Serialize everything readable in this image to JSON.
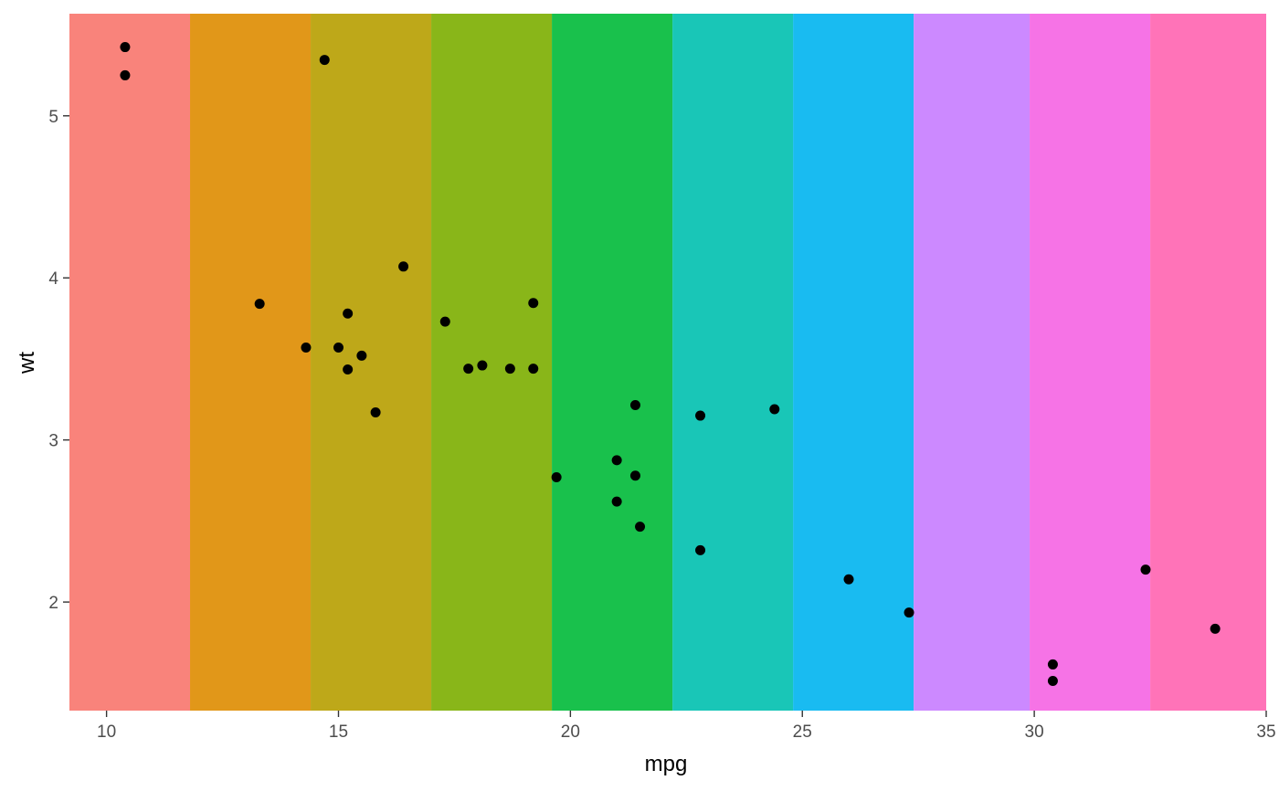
{
  "chart_data": {
    "type": "scatter",
    "xlabel": "mpg",
    "ylabel": "wt",
    "xlim": [
      9.2,
      35.0
    ],
    "ylim": [
      1.33,
      5.63
    ],
    "grid": false,
    "legend": "none",
    "x_ticks": [
      {
        "value": 10,
        "label": "10"
      },
      {
        "value": 15,
        "label": "15"
      },
      {
        "value": 20,
        "label": "20"
      },
      {
        "value": 25,
        "label": "25"
      },
      {
        "value": 30,
        "label": "30"
      },
      {
        "value": 35,
        "label": "35"
      }
    ],
    "y_ticks": [
      {
        "value": 2,
        "label": "2"
      },
      {
        "value": 3,
        "label": "3"
      },
      {
        "value": 4,
        "label": "4"
      },
      {
        "value": 5,
        "label": "5"
      }
    ],
    "background_bands": [
      {
        "x_from": 9.2,
        "x_to": 11.8,
        "color": "#F8766D"
      },
      {
        "x_from": 11.8,
        "x_to": 14.4,
        "color": "#DE8C00"
      },
      {
        "x_from": 14.4,
        "x_to": 17.0,
        "color": "#B79F00"
      },
      {
        "x_from": 17.0,
        "x_to": 19.6,
        "color": "#7CAE00"
      },
      {
        "x_from": 19.6,
        "x_to": 22.2,
        "color": "#00BA38"
      },
      {
        "x_from": 22.2,
        "x_to": 24.8,
        "color": "#00C0AF"
      },
      {
        "x_from": 24.8,
        "x_to": 27.4,
        "color": "#00B4F0"
      },
      {
        "x_from": 27.4,
        "x_to": 29.9,
        "color": "#C77CFF"
      },
      {
        "x_from": 29.9,
        "x_to": 32.5,
        "color": "#F564E3"
      },
      {
        "x_from": 32.5,
        "x_to": 35.0,
        "color": "#FF64B0"
      }
    ],
    "band_opacity": 0.9,
    "points": [
      {
        "x": 21.0,
        "y": 2.62
      },
      {
        "x": 21.0,
        "y": 2.875
      },
      {
        "x": 22.8,
        "y": 2.32
      },
      {
        "x": 21.4,
        "y": 3.215
      },
      {
        "x": 18.7,
        "y": 3.44
      },
      {
        "x": 18.1,
        "y": 3.46
      },
      {
        "x": 14.3,
        "y": 3.57
      },
      {
        "x": 24.4,
        "y": 3.19
      },
      {
        "x": 22.8,
        "y": 3.15
      },
      {
        "x": 19.2,
        "y": 3.44
      },
      {
        "x": 17.8,
        "y": 3.44
      },
      {
        "x": 16.4,
        "y": 4.07
      },
      {
        "x": 17.3,
        "y": 3.73
      },
      {
        "x": 15.2,
        "y": 3.78
      },
      {
        "x": 10.4,
        "y": 5.25
      },
      {
        "x": 10.4,
        "y": 5.424
      },
      {
        "x": 14.7,
        "y": 5.345
      },
      {
        "x": 32.4,
        "y": 2.2
      },
      {
        "x": 30.4,
        "y": 1.615
      },
      {
        "x": 33.9,
        "y": 1.835
      },
      {
        "x": 21.5,
        "y": 2.465
      },
      {
        "x": 15.5,
        "y": 3.52
      },
      {
        "x": 15.2,
        "y": 3.435
      },
      {
        "x": 13.3,
        "y": 3.84
      },
      {
        "x": 19.2,
        "y": 3.845
      },
      {
        "x": 27.3,
        "y": 1.935
      },
      {
        "x": 26.0,
        "y": 2.14
      },
      {
        "x": 30.4,
        "y": 1.513
      },
      {
        "x": 15.8,
        "y": 3.17
      },
      {
        "x": 19.7,
        "y": 2.77
      },
      {
        "x": 15.0,
        "y": 3.57
      },
      {
        "x": 21.4,
        "y": 2.78
      }
    ]
  }
}
